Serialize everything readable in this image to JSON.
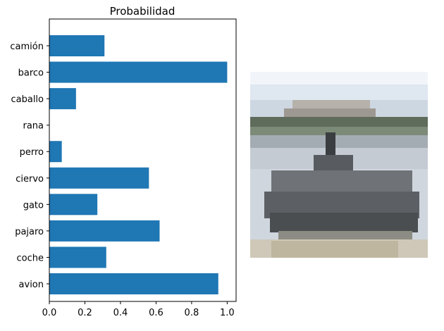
{
  "chart_data": {
    "type": "bar",
    "orientation": "horizontal",
    "title": "Probabilidad",
    "xlabel": "",
    "ylabel": "",
    "xlim": [
      0,
      1.05
    ],
    "xticks": [
      "0.0",
      "0.2",
      "0.4",
      "0.6",
      "0.8",
      "1.0"
    ],
    "grid": false,
    "categories": [
      "avion",
      "coche",
      "pajaro",
      "gato",
      "ciervo",
      "perro",
      "rana",
      "caballo",
      "barco",
      "camión"
    ],
    "values": [
      0.95,
      0.32,
      0.62,
      0.27,
      0.56,
      0.07,
      0.0,
      0.15,
      1.0,
      0.31
    ],
    "bar_color": "#1f77b4"
  },
  "image_panel": {
    "icon": "boat-pixel-image"
  }
}
